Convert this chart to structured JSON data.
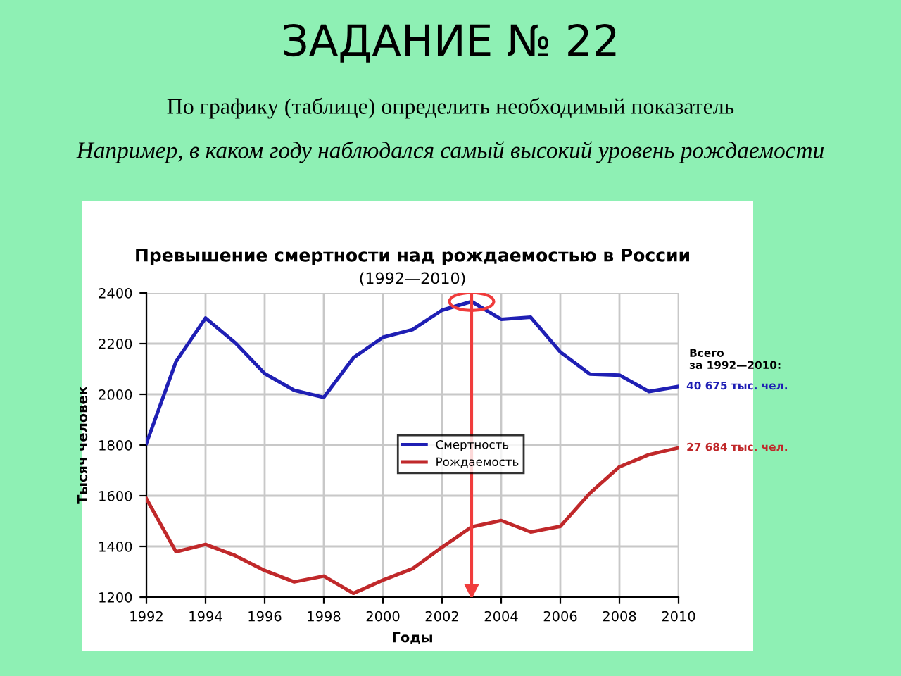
{
  "chart_data": {
    "type": "line",
    "title": "Превышение смертности над рождаемостью в России",
    "subtitle": "(1992—2010)",
    "xlabel": "Годы",
    "ylabel": "Тысяч человек",
    "x": [
      1992,
      1993,
      1994,
      1995,
      1996,
      1997,
      1998,
      1999,
      2000,
      2001,
      2002,
      2003,
      2004,
      2005,
      2006,
      2007,
      2008,
      2009,
      2010
    ],
    "series": [
      {
        "name": "Смертность",
        "color": "#1f1fb4",
        "values": [
          1807,
          2129,
          2301,
          2204,
          2082,
          2016,
          1988,
          2144,
          2225,
          2255,
          2332,
          2366,
          2296,
          2304,
          2167,
          2080,
          2076,
          2011,
          2031
        ]
      },
      {
        "name": "Рождаемость",
        "color": "#c0282a",
        "values": [
          1588,
          1379,
          1408,
          1364,
          1305,
          1260,
          1283,
          1215,
          1267,
          1312,
          1397,
          1477,
          1502,
          1457,
          1479,
          1610,
          1714,
          1762,
          1789
        ]
      }
    ],
    "xlim": [
      1992,
      2010
    ],
    "xticks": [
      1992,
      1994,
      1996,
      1998,
      2000,
      2002,
      2004,
      2006,
      2008,
      2010
    ],
    "ylim": [
      1200,
      2400
    ],
    "yticks": [
      1200,
      1400,
      1600,
      1800,
      2000,
      2200,
      2400
    ],
    "grid": true,
    "legend": "right",
    "marker": "none",
    "line_style": "solid",
    "ref_lines": [
      {
        "axis": "x",
        "value": 2003,
        "color": "#f03c3c"
      }
    ],
    "annotations": [
      "ЗАДАНИЕ № 22",
      "По графику (таблице) определить необходимый показатель",
      "Например, в каком году наблюдался самый высокий уровень рождаемости",
      "Всего\nза 1992—2010:",
      {
        "text": "40 675 тыс. чел.",
        "x": 2010,
        "y": 2031
      },
      {
        "text": "27 684 тыс. чел.",
        "x": 2010,
        "y": 1789
      }
    ]
  }
}
